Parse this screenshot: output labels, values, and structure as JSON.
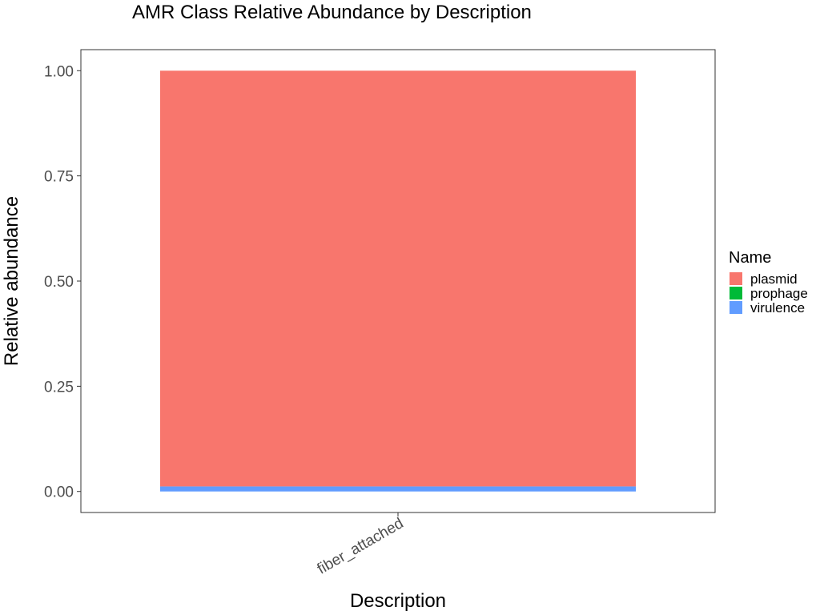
{
  "chart_data": {
    "type": "bar",
    "stacked": true,
    "title": "AMR Class Relative Abundance by Description",
    "xlabel": "Description",
    "ylabel": "Relative abundance",
    "categories": [
      "fiber_attached"
    ],
    "ylim": [
      -0.05,
      1.05
    ],
    "yticks": [
      0,
      0.25,
      0.5,
      0.75,
      1.0
    ],
    "ytick_labels": [
      "0.00",
      "0.25",
      "0.50",
      "0.75",
      "1.00"
    ],
    "grid": false,
    "legend": {
      "title": "Name",
      "position": "right"
    },
    "series": [
      {
        "name": "virulence",
        "values": [
          0.012
        ],
        "color": "#619CFF"
      },
      {
        "name": "prophage",
        "values": [
          0.0
        ],
        "color": "#00BA38"
      },
      {
        "name": "plasmid",
        "values": [
          0.988
        ],
        "color": "#F8766D"
      }
    ],
    "legend_order": [
      "plasmid",
      "prophage",
      "virulence"
    ]
  }
}
